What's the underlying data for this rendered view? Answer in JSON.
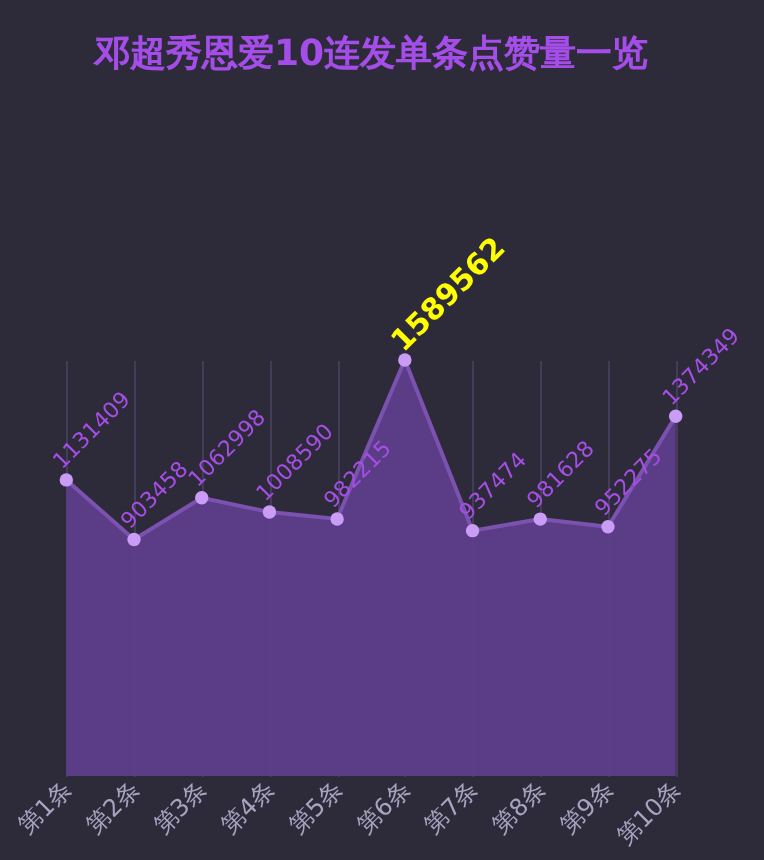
{
  "chart_data": {
    "type": "area",
    "title": "邓超秀恩爱10连发单条点赞量一览",
    "categories": [
      "第1条",
      "第2条",
      "第3条",
      "第4条",
      "第5条",
      "第6条",
      "第7条",
      "第8条",
      "第9条",
      "第10条"
    ],
    "series": [
      {
        "color": "#5e3d8a",
        "values": [
          1131409,
          903458,
          1062998,
          1008590,
          982215,
          1589562,
          937474,
          981628,
          952275,
          1374349
        ]
      }
    ],
    "data_labels": true,
    "marker": "circle",
    "grid": "x"
  }
}
